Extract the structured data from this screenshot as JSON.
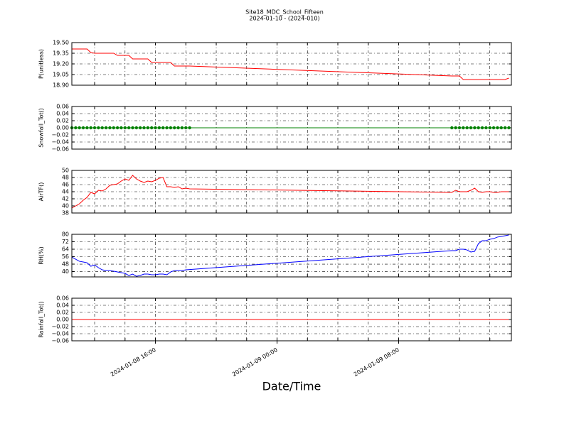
{
  "chart_data": [
    {
      "type": "line",
      "title": "Site18_MDC_School_Fifteen",
      "subtitle": "2024-01-10 - (2024-010)",
      "ylabel": "P(unitless)",
      "color": "#ff0000",
      "grid": true,
      "ylim": [
        18.9,
        19.5
      ],
      "yticks": [
        {
          "value": 18.9,
          "label": "18.90"
        },
        19.05,
        {
          "value": 19.2,
          "label": "19.20"
        },
        19.35,
        {
          "value": 19.5,
          "label": "19.50"
        }
      ],
      "values": [
        19.41,
        19.41,
        19.41,
        19.41,
        19.41,
        19.36,
        19.35,
        19.35,
        19.35,
        19.35,
        19.35,
        19.35,
        19.32,
        19.32,
        19.32,
        19.32,
        19.27,
        19.27,
        19.27,
        19.27,
        19.27,
        19.22,
        19.22,
        19.22,
        19.22,
        19.22,
        19.22,
        19.17,
        19.17,
        19.17,
        19.17,
        19.17,
        19.03,
        19.03,
        19.03,
        18.98,
        18.98,
        18.98,
        18.98,
        18.98,
        18.98,
        18.98,
        18.98,
        18.98,
        18.98,
        18.98,
        18.98,
        19.0
      ]
    },
    {
      "type": "line",
      "ylabel": "Snowfall_Tot()",
      "color": "#008000",
      "markers": true,
      "grid": true,
      "ylim": [
        -0.06,
        0.06
      ],
      "yticks": [
        {
          "value": -0.06,
          "label": "−0.06"
        },
        {
          "value": -0.04,
          "label": "−0.04"
        },
        {
          "value": -0.02,
          "label": "−0.02"
        },
        {
          "value": 0,
          "label": "0.00"
        },
        0.02,
        0.04,
        0.06
      ],
      "values": [
        0,
        0,
        0,
        0,
        0,
        0,
        0,
        0,
        0,
        0,
        0,
        0,
        0,
        0,
        0,
        0,
        0,
        0,
        0,
        0,
        0,
        0,
        0,
        0,
        0,
        0,
        0,
        0,
        0,
        0,
        0,
        0,
        0,
        0,
        0,
        0,
        0,
        0,
        0,
        0,
        0,
        0,
        0,
        0,
        0,
        0,
        0,
        0
      ]
    },
    {
      "type": "line",
      "ylabel": "AirTF()",
      "color": "#ff0000",
      "grid": true,
      "ylim": [
        38,
        50
      ],
      "yticks": [
        38,
        40,
        42,
        44,
        46,
        48,
        50
      ],
      "values": [
        39.4,
        40.0,
        40.6,
        41.6,
        42.4,
        43.8,
        43.4,
        44.4,
        44.2,
        44.8,
        45.8,
        46.0,
        46.2,
        47.0,
        47.6,
        47.2,
        48.6,
        47.6,
        47.0,
        46.6,
        47.0,
        46.8,
        47.2,
        47.8,
        48.0,
        45.4,
        45.4,
        45.2,
        45.4,
        44.8,
        45.0,
        44.8,
        43.8,
        44.4,
        44.0,
        44.0,
        44.0,
        44.4,
        45.0,
        44.0,
        43.8,
        44.0,
        44.0,
        43.8,
        43.8,
        44.0,
        44.0,
        44.0
      ]
    },
    {
      "type": "line",
      "ylabel": "RH(%)",
      "color": "#0000ff",
      "grid": true,
      "ylim": [
        34.3,
        80
      ],
      "yticks": [
        40,
        48,
        56,
        64,
        72,
        80
      ],
      "values": [
        55.6,
        53.3,
        51.0,
        50.3,
        49.5,
        45.7,
        47.2,
        44.2,
        41.9,
        41.1,
        41.1,
        40.4,
        39.6,
        38.9,
        38.1,
        35.8,
        37.3,
        35.0,
        35.8,
        37.3,
        37.3,
        36.6,
        36.6,
        37.3,
        37.3,
        36.6,
        39.6,
        41.1,
        41.1,
        41.1,
        41.9,
        42.2,
        62.5,
        62.5,
        64.0,
        64.0,
        63.2,
        61.0,
        61.7,
        70.0,
        73.1,
        73.1,
        74.7,
        75.4,
        77.0,
        77.7,
        78.5,
        79.2
      ]
    },
    {
      "type": "line",
      "ylabel": "Rainfall_Tot()",
      "color": "#ff0000",
      "grid": true,
      "ylim": [
        -0.06,
        0.06
      ],
      "yticks": [
        {
          "value": -0.06,
          "label": "−0.06"
        },
        {
          "value": -0.04,
          "label": "−0.04"
        },
        {
          "value": -0.02,
          "label": "−0.02"
        },
        {
          "value": 0,
          "label": "0.00"
        },
        0.02,
        0.04,
        0.06
      ],
      "values": [
        0,
        0,
        0,
        0,
        0,
        0,
        0,
        0,
        0,
        0,
        0,
        0,
        0,
        0,
        0,
        0,
        0,
        0,
        0,
        0,
        0,
        0,
        0,
        0,
        0,
        0,
        0,
        0,
        0,
        0,
        0,
        0,
        0,
        0,
        0,
        0,
        0,
        0,
        0,
        0,
        0,
        0,
        0,
        0,
        0,
        0,
        0,
        0
      ],
      "xlabel": "Date/Time",
      "x": [
        "2024-01-08 10:30",
        "2024-01-08 10:45",
        "2024-01-08 11:00",
        "2024-01-08 11:15",
        "2024-01-08 11:30",
        "2024-01-08 11:45",
        "2024-01-08 12:00",
        "2024-01-08 12:15",
        "2024-01-08 12:30",
        "2024-01-08 12:45",
        "2024-01-08 13:00",
        "2024-01-08 13:15",
        "2024-01-08 13:30",
        "2024-01-08 13:45",
        "2024-01-08 14:00",
        "2024-01-08 14:15",
        "2024-01-08 14:30",
        "2024-01-08 14:45",
        "2024-01-08 15:00",
        "2024-01-08 15:15",
        "2024-01-08 15:30",
        "2024-01-08 15:45",
        "2024-01-08 16:00",
        "2024-01-08 16:15",
        "2024-01-08 16:30",
        "2024-01-08 16:45",
        "2024-01-08 17:00",
        "2024-01-08 17:15",
        "2024-01-08 17:30",
        "2024-01-08 17:45",
        "2024-01-08 18:00",
        "2024-01-08 18:15",
        "2024-01-09 11:30",
        "2024-01-09 11:45",
        "2024-01-09 12:00",
        "2024-01-09 12:15",
        "2024-01-09 12:30",
        "2024-01-09 12:45",
        "2024-01-09 13:00",
        "2024-01-09 13:15",
        "2024-01-09 13:30",
        "2024-01-09 13:45",
        "2024-01-09 14:00",
        "2024-01-09 14:15",
        "2024-01-09 14:30",
        "2024-01-09 14:45",
        "2024-01-09 15:00",
        "2024-01-09 15:15"
      ],
      "xlim": [
        "2024-01-08 10:30",
        "2024-01-09 15:25"
      ],
      "xticks": [
        "2024-01-08 16:00",
        "2024-01-09 00:00",
        "2024-01-09 08:00"
      ],
      "xgrid": [
        "2024-01-08 12:00",
        "2024-01-08 14:00",
        "2024-01-08 16:00",
        "2024-01-08 18:00",
        "2024-01-08 20:00",
        "2024-01-08 22:00",
        "2024-01-09 00:00",
        "2024-01-09 02:00",
        "2024-01-09 04:00",
        "2024-01-09 06:00",
        "2024-01-09 08:00",
        "2024-01-09 10:00",
        "2024-01-09 12:00",
        "2024-01-09 14:00"
      ]
    }
  ]
}
